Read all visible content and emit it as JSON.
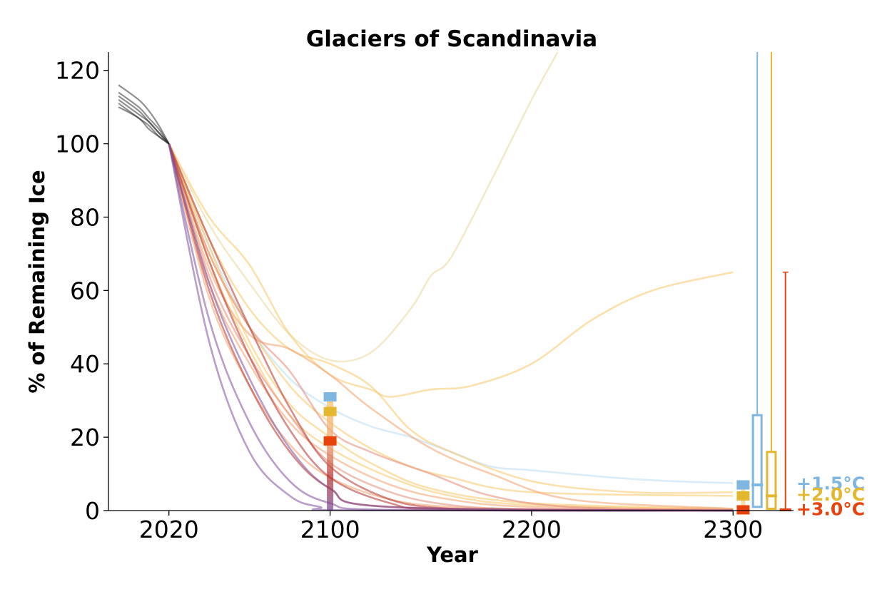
{
  "chart_data": {
    "type": "line",
    "title": "Glaciers of Scandinavia",
    "xlabel": "Year",
    "ylabel": "% of Remaining Ice",
    "xlim": [
      1990,
      2330
    ],
    "ylim": [
      0,
      125
    ],
    "x_ticks": [
      "2020",
      "2100",
      "2200",
      "2300"
    ],
    "y_ticks": [
      "0",
      "20",
      "40",
      "60",
      "80",
      "100",
      "120"
    ],
    "grid": false,
    "colors": {
      "historical": "#222222",
      "c15": "#7fb6e2",
      "c20": "#e4b82e",
      "c30": "#e8420d",
      "light_blue": "#bcdcf2",
      "yellow_light": "#f5c86a",
      "orange_light": "#f2a36f",
      "salmon": "#e48a7a",
      "dark_red": "#b5322e",
      "purple": "#7e4f9a",
      "wheat": "#ead9a0"
    },
    "historical": [
      {
        "x": [
          1995,
          2005,
          2010,
          2015,
          2020
        ],
        "y": [
          116,
          112,
          109,
          105,
          100
        ]
      },
      {
        "x": [
          1995,
          2005,
          2010,
          2015,
          2020
        ],
        "y": [
          114,
          110,
          107,
          104,
          100
        ]
      },
      {
        "x": [
          1995,
          2005,
          2010,
          2015,
          2020
        ],
        "y": [
          113,
          109,
          106,
          103,
          100
        ]
      },
      {
        "x": [
          1995,
          2005,
          2010,
          2015,
          2020
        ],
        "y": [
          112,
          108,
          106,
          103,
          100
        ]
      },
      {
        "x": [
          1995,
          2005,
          2010,
          2015,
          2020
        ],
        "y": [
          111,
          107,
          105,
          102,
          100
        ]
      },
      {
        "x": [
          1995,
          2005,
          2010,
          2015,
          2020
        ],
        "y": [
          110,
          107,
          104,
          102,
          100
        ]
      }
    ],
    "series": [
      {
        "color": "wheat",
        "x": [
          2020,
          2040,
          2060,
          2080,
          2100,
          2120,
          2140,
          2150,
          2160,
          2180,
          2200,
          2213
        ],
        "y": [
          100,
          78,
          62,
          48,
          41,
          43,
          55,
          64,
          69,
          90,
          112,
          125
        ]
      },
      {
        "color": "yellow_light",
        "x": [
          2020,
          2040,
          2060,
          2080,
          2100,
          2120,
          2130,
          2150,
          2170,
          2200,
          2230,
          2260,
          2300
        ],
        "y": [
          100,
          80,
          67,
          48,
          37,
          33,
          31,
          33,
          34,
          40,
          52,
          60,
          65
        ]
      },
      {
        "color": "light_blue",
        "x": [
          2020,
          2040,
          2060,
          2080,
          2100,
          2120,
          2140,
          2160,
          2180,
          2200,
          2240,
          2270,
          2300
        ],
        "y": [
          100,
          72,
          50,
          36,
          28,
          23,
          20,
          16,
          12,
          11,
          9,
          8,
          7.5
        ]
      },
      {
        "color": "yellow_light",
        "x": [
          2020,
          2040,
          2060,
          2080,
          2100,
          2120,
          2140,
          2160,
          2200,
          2250,
          2300
        ],
        "y": [
          100,
          74,
          55,
          44,
          40,
          34,
          22,
          16,
          8,
          5,
          5
        ]
      },
      {
        "color": "yellow_light",
        "x": [
          2020,
          2040,
          2060,
          2080,
          2100,
          2120,
          2140,
          2160,
          2200,
          2300
        ],
        "y": [
          100,
          70,
          50,
          34,
          24,
          17,
          12,
          9,
          5,
          4
        ]
      },
      {
        "color": "yellow_light",
        "x": [
          2020,
          2040,
          2060,
          2080,
          2100,
          2120,
          2150,
          2200,
          2300
        ],
        "y": [
          100,
          72,
          46,
          29,
          20,
          13,
          6,
          2,
          0.5
        ]
      },
      {
        "color": "yellow_light",
        "x": [
          2020,
          2040,
          2060,
          2080,
          2100,
          2130,
          2160,
          2200,
          2300
        ],
        "y": [
          100,
          68,
          44,
          26,
          17,
          9,
          4,
          1.5,
          0.3
        ]
      },
      {
        "color": "orange_light",
        "x": [
          2020,
          2040,
          2060,
          2080,
          2100,
          2120,
          2150,
          2180,
          2220,
          2300
        ],
        "y": [
          100,
          66,
          48,
          44,
          37,
          28,
          17,
          10,
          3,
          0.5
        ]
      },
      {
        "color": "orange_light",
        "x": [
          2020,
          2040,
          2060,
          2080,
          2100,
          2130,
          2160,
          2200,
          2300
        ],
        "y": [
          100,
          62,
          40,
          24,
          15,
          7,
          3,
          1,
          0.2
        ]
      },
      {
        "color": "orange_light",
        "x": [
          2020,
          2040,
          2060,
          2080,
          2100,
          2130,
          2160,
          2200,
          2300
        ],
        "y": [
          100,
          58,
          34,
          18,
          9,
          3,
          1,
          0.3,
          0
        ]
      },
      {
        "color": "salmon",
        "x": [
          2020,
          2040,
          2060,
          2080,
          2100,
          2120,
          2150,
          2180,
          2220,
          2300
        ],
        "y": [
          100,
          70,
          50,
          38,
          22,
          16,
          10,
          4,
          1,
          0.2
        ]
      },
      {
        "color": "salmon",
        "x": [
          2020,
          2040,
          2060,
          2080,
          2100,
          2130,
          2160,
          2200,
          2300
        ],
        "y": [
          100,
          64,
          42,
          26,
          13,
          5,
          1.5,
          0.4,
          0
        ]
      },
      {
        "color": "dark_red",
        "x": [
          2020,
          2040,
          2060,
          2080,
          2100,
          2130,
          2160,
          2200,
          2300
        ],
        "y": [
          100,
          74,
          50,
          28,
          12,
          3,
          0.5,
          0,
          0
        ]
      },
      {
        "color": "dark_red",
        "x": [
          2020,
          2040,
          2060,
          2080,
          2100,
          2130,
          2160,
          2300
        ],
        "y": [
          100,
          68,
          42,
          22,
          9,
          2,
          0.3,
          0
        ]
      },
      {
        "color": "dark_red",
        "x": [
          2020,
          2040,
          2060,
          2080,
          2100,
          2130,
          2300
        ],
        "y": [
          100,
          60,
          34,
          16,
          6,
          1,
          0
        ]
      },
      {
        "color": "purple",
        "x": [
          2020,
          2040,
          2060,
          2080,
          2100,
          2130,
          2300
        ],
        "y": [
          100,
          62,
          36,
          17,
          6,
          1,
          0
        ]
      },
      {
        "color": "purple",
        "x": [
          2020,
          2040,
          2060,
          2080,
          2100,
          2130,
          2300
        ],
        "y": [
          100,
          52,
          24,
          8,
          2,
          0.2,
          0
        ]
      },
      {
        "color": "purple",
        "x": [
          2020,
          2040,
          2060,
          2080,
          2095,
          2110,
          2300
        ],
        "y": [
          100,
          46,
          16,
          4,
          1,
          0.1,
          0
        ]
      }
    ],
    "markers_2100": [
      {
        "scenario": "+1.5°C",
        "x": 2100,
        "y": 31
      },
      {
        "scenario": "+2.0°C",
        "x": 2100,
        "y": 27
      },
      {
        "scenario": "+3.0°C",
        "x": 2100,
        "y": 19
      }
    ],
    "markers_2300": [
      {
        "scenario": "+1.5°C",
        "x": 2305,
        "y": 7
      },
      {
        "scenario": "+2.0°C",
        "x": 2305,
        "y": 4
      },
      {
        "scenario": "+3.0°C",
        "x": 2305,
        "y": 0.2
      }
    ],
    "boxplots": [
      {
        "scenario": "+1.5°C",
        "x": 2312,
        "min": 1,
        "q1": 1,
        "median": 7,
        "q3": 26,
        "max": 125
      },
      {
        "scenario": "+2.0°C",
        "x": 2319,
        "min": 0.5,
        "q1": 0.5,
        "median": 4,
        "q3": 16,
        "max": 125
      },
      {
        "scenario": "+3.0°C",
        "x": 2326,
        "min": 0,
        "q1": 0,
        "median": 0.2,
        "q3": 0.5,
        "max": 65
      }
    ],
    "legend": [
      {
        "label": "+1.5°C",
        "color": "#7fb6e2",
        "y": 7.5
      },
      {
        "label": "+2.0°C",
        "color": "#e4b82e",
        "y": 4.5
      },
      {
        "label": "+3.0°C",
        "color": "#e8420d",
        "y": 0.5
      }
    ]
  }
}
